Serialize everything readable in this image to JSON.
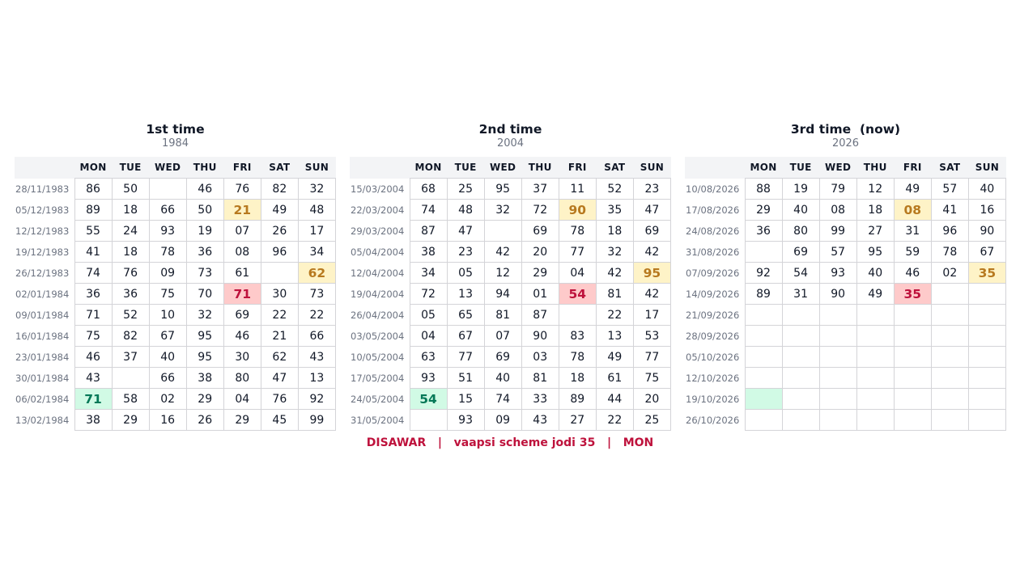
{
  "days": [
    "MON",
    "TUE",
    "WED",
    "THU",
    "FRI",
    "SAT",
    "SUN"
  ],
  "colors": {
    "yellow_highlight": "#fef3c7",
    "red_highlight": "#fecaca",
    "green_highlight": "#d1fae5",
    "footer": "#be123c"
  },
  "panels": [
    {
      "title": "1st time",
      "year": "1984",
      "rows": [
        {
          "date": "28/11/1983",
          "cells": [
            "86",
            "50",
            "",
            "46",
            "76",
            "82",
            "32"
          ]
        },
        {
          "date": "05/12/1983",
          "cells": [
            "89",
            "18",
            "66",
            "50",
            "21",
            "49",
            "48"
          ]
        },
        {
          "date": "12/12/1983",
          "cells": [
            "55",
            "24",
            "93",
            "19",
            "07",
            "26",
            "17"
          ]
        },
        {
          "date": "19/12/1983",
          "cells": [
            "41",
            "18",
            "78",
            "36",
            "08",
            "96",
            "34"
          ]
        },
        {
          "date": "26/12/1983",
          "cells": [
            "74",
            "76",
            "09",
            "73",
            "61",
            "",
            "62"
          ]
        },
        {
          "date": "02/01/1984",
          "cells": [
            "36",
            "36",
            "75",
            "70",
            "71",
            "30",
            "73"
          ]
        },
        {
          "date": "09/01/1984",
          "cells": [
            "71",
            "52",
            "10",
            "32",
            "69",
            "22",
            "22"
          ]
        },
        {
          "date": "16/01/1984",
          "cells": [
            "75",
            "82",
            "67",
            "95",
            "46",
            "21",
            "66"
          ]
        },
        {
          "date": "23/01/1984",
          "cells": [
            "46",
            "37",
            "40",
            "95",
            "30",
            "62",
            "43"
          ]
        },
        {
          "date": "30/01/1984",
          "cells": [
            "43",
            "",
            "66",
            "38",
            "80",
            "47",
            "13"
          ]
        },
        {
          "date": "06/02/1984",
          "cells": [
            "71",
            "58",
            "02",
            "29",
            "04",
            "76",
            "92"
          ]
        },
        {
          "date": "13/02/1984",
          "cells": [
            "38",
            "29",
            "16",
            "26",
            "29",
            "45",
            "99"
          ]
        }
      ],
      "highlights": [
        {
          "row": 1,
          "col": 4,
          "color": "yellow"
        },
        {
          "row": 4,
          "col": 6,
          "color": "yellow"
        },
        {
          "row": 5,
          "col": 4,
          "color": "red"
        },
        {
          "row": 10,
          "col": 0,
          "color": "green"
        }
      ]
    },
    {
      "title": "2nd time",
      "year": "2004",
      "rows": [
        {
          "date": "15/03/2004",
          "cells": [
            "68",
            "25",
            "95",
            "37",
            "11",
            "52",
            "23"
          ]
        },
        {
          "date": "22/03/2004",
          "cells": [
            "74",
            "48",
            "32",
            "72",
            "90",
            "35",
            "47"
          ]
        },
        {
          "date": "29/03/2004",
          "cells": [
            "87",
            "47",
            "",
            "69",
            "78",
            "18",
            "69"
          ]
        },
        {
          "date": "05/04/2004",
          "cells": [
            "38",
            "23",
            "42",
            "20",
            "77",
            "32",
            "42"
          ]
        },
        {
          "date": "12/04/2004",
          "cells": [
            "34",
            "05",
            "12",
            "29",
            "04",
            "42",
            "95"
          ]
        },
        {
          "date": "19/04/2004",
          "cells": [
            "72",
            "13",
            "94",
            "01",
            "54",
            "81",
            "42"
          ]
        },
        {
          "date": "26/04/2004",
          "cells": [
            "05",
            "65",
            "81",
            "87",
            "",
            "22",
            "17"
          ]
        },
        {
          "date": "03/05/2004",
          "cells": [
            "04",
            "67",
            "07",
            "90",
            "83",
            "13",
            "53"
          ]
        },
        {
          "date": "10/05/2004",
          "cells": [
            "63",
            "77",
            "69",
            "03",
            "78",
            "49",
            "77"
          ]
        },
        {
          "date": "17/05/2004",
          "cells": [
            "93",
            "51",
            "40",
            "81",
            "18",
            "61",
            "75"
          ]
        },
        {
          "date": "24/05/2004",
          "cells": [
            "54",
            "15",
            "74",
            "33",
            "89",
            "44",
            "20"
          ]
        },
        {
          "date": "31/05/2004",
          "cells": [
            "",
            "93",
            "09",
            "43",
            "27",
            "22",
            "25"
          ]
        }
      ],
      "highlights": [
        {
          "row": 1,
          "col": 4,
          "color": "yellow"
        },
        {
          "row": 4,
          "col": 6,
          "color": "yellow"
        },
        {
          "row": 5,
          "col": 4,
          "color": "red"
        },
        {
          "row": 10,
          "col": 0,
          "color": "green"
        }
      ]
    },
    {
      "title": "3rd time  (now)",
      "year": "2026",
      "rows": [
        {
          "date": "10/08/2026",
          "cells": [
            "88",
            "19",
            "79",
            "12",
            "49",
            "57",
            "40"
          ]
        },
        {
          "date": "17/08/2026",
          "cells": [
            "29",
            "40",
            "08",
            "18",
            "08",
            "41",
            "16"
          ]
        },
        {
          "date": "24/08/2026",
          "cells": [
            "36",
            "80",
            "99",
            "27",
            "31",
            "96",
            "90"
          ]
        },
        {
          "date": "31/08/2026",
          "cells": [
            "",
            "69",
            "57",
            "95",
            "59",
            "78",
            "67"
          ]
        },
        {
          "date": "07/09/2026",
          "cells": [
            "92",
            "54",
            "93",
            "40",
            "46",
            "02",
            "35"
          ]
        },
        {
          "date": "14/09/2026",
          "cells": [
            "89",
            "31",
            "90",
            "49",
            "35",
            "",
            ""
          ]
        },
        {
          "date": "21/09/2026",
          "cells": [
            "",
            "",
            "",
            "",
            "",
            "",
            ""
          ]
        },
        {
          "date": "28/09/2026",
          "cells": [
            "",
            "",
            "",
            "",
            "",
            "",
            ""
          ]
        },
        {
          "date": "05/10/2026",
          "cells": [
            "",
            "",
            "",
            "",
            "",
            "",
            ""
          ]
        },
        {
          "date": "12/10/2026",
          "cells": [
            "",
            "",
            "",
            "",
            "",
            "",
            ""
          ]
        },
        {
          "date": "19/10/2026",
          "cells": [
            "",
            "",
            "",
            "",
            "",
            "",
            ""
          ]
        },
        {
          "date": "26/10/2026",
          "cells": [
            "",
            "",
            "",
            "",
            "",
            "",
            ""
          ]
        }
      ],
      "highlights": [
        {
          "row": 1,
          "col": 4,
          "color": "yellow"
        },
        {
          "row": 4,
          "col": 6,
          "color": "yellow"
        },
        {
          "row": 5,
          "col": 4,
          "color": "red"
        },
        {
          "row": 10,
          "col": 0,
          "color": "green"
        }
      ]
    }
  ],
  "footer": {
    "text": "DISAWAR   |   vaapsi scheme jodi 35   |   MON"
  }
}
